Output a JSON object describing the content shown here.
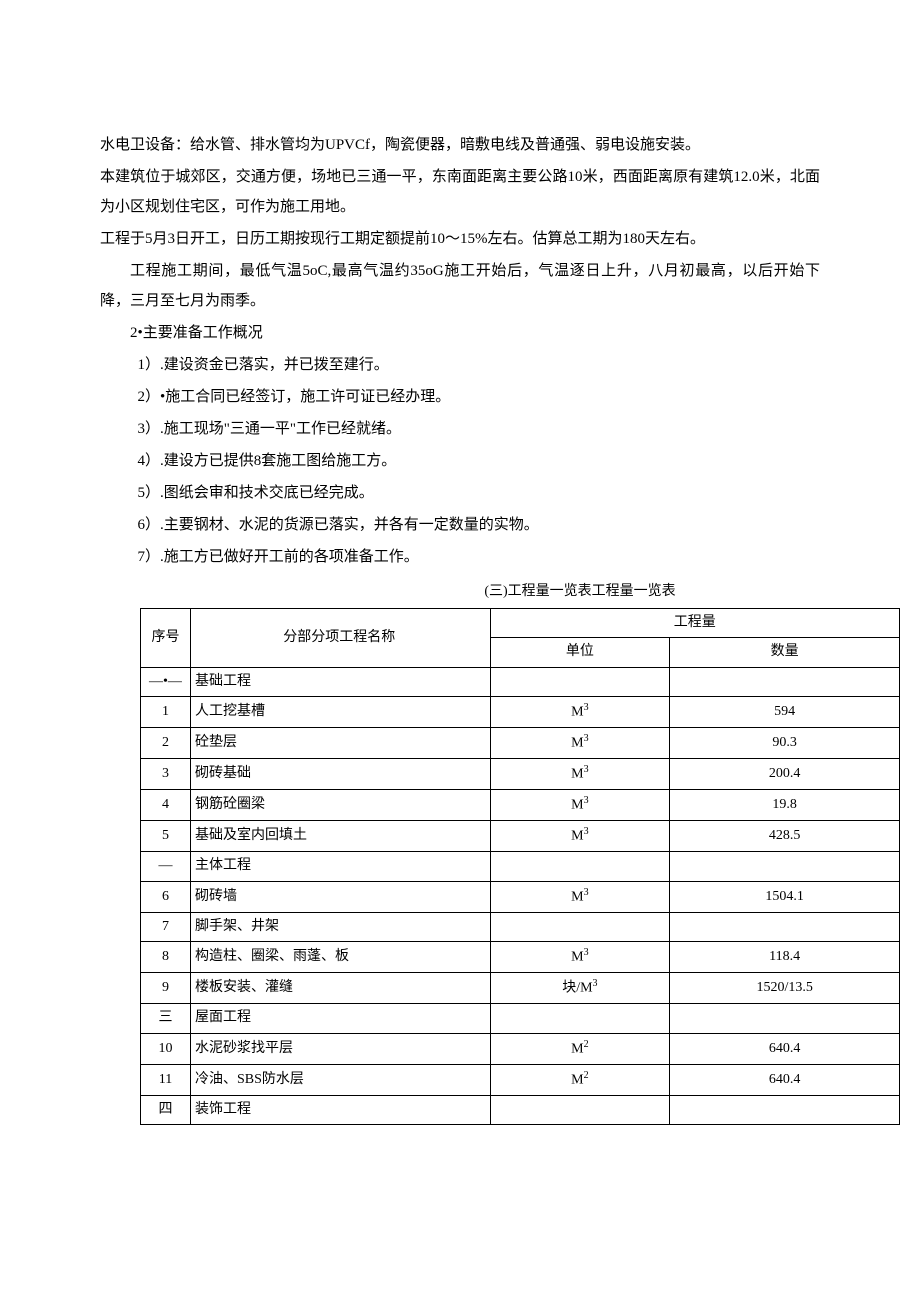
{
  "paragraphs": {
    "p1": "水电卫设备：给水管、排水管均为UPVCf，陶瓷便器，暗敷电线及普通强、弱电设施安装。",
    "p2": "本建筑位于城郊区，交通方便，场地已三通一平，东南面距离主要公路10米，西面距离原有建筑12.0米，北面为小区规划住宅区，可作为施工用地。",
    "p3": "工程于5月3日开工，日历工期按现行工期定额提前10～15%左右。估算总工期为180天左右。",
    "p4": "工程施工期间，最低气温5oC,最高气温约35oG施工开始后，气温逐日上升，八月初最高，以后开始下降，三月至七月为雨季。",
    "p5": "2•主要准备工作概况",
    "p6": "1）.建设资金已落实，并已拨至建行。",
    "p7": "2）•施工合同已经签订，施工许可证已经办理。",
    "p8": "3）.施工现场\"三通一平\"工作已经就绪。",
    "p9": "4）.建设方已提供8套施工图给施工方。",
    "p10": "5）.图纸会审和技术交底已经完成。",
    "p11": "6）.主要钢材、水泥的货源已落实，并各有一定数量的实物。",
    "p12": "7）.施工方已做好开工前的各项准备工作。"
  },
  "table": {
    "caption": "(三)工程量一览表工程量一览表",
    "headers": {
      "num": "序号",
      "name": "分部分项工程名称",
      "qty_group": "工程量",
      "unit": "单位",
      "qty": "数量"
    },
    "unit_m3": "M",
    "unit_m3_sup": "3",
    "unit_m2": "M",
    "unit_m2_sup": "2",
    "unit_block": "块/M",
    "rows": [
      {
        "num": "—•—",
        "name": "基础工程",
        "unit": "",
        "qty": ""
      },
      {
        "num": "1",
        "name": "人工挖基槽",
        "unit": "M3",
        "qty": "594"
      },
      {
        "num": "2",
        "name": "砼垫层",
        "unit": "M3",
        "qty": "90.3"
      },
      {
        "num": "3",
        "name": "砌砖基础",
        "unit": "M3",
        "qty": "200.4"
      },
      {
        "num": "4",
        "name": "钢筋砼圈梁",
        "unit": "M3",
        "qty": "19.8"
      },
      {
        "num": "5",
        "name": "基础及室内回填土",
        "unit": "M3",
        "qty": "428.5"
      },
      {
        "num": "—",
        "name": "主体工程",
        "unit": "",
        "qty": ""
      },
      {
        "num": "6",
        "name": "砌砖墙",
        "unit": "M3",
        "qty": "1504.1"
      },
      {
        "num": "7",
        "name": "脚手架、井架",
        "unit": "",
        "qty": ""
      },
      {
        "num": "8",
        "name": "构造柱、圈梁、雨蓬、板",
        "unit": "M3",
        "qty": "118.4"
      },
      {
        "num": "9",
        "name": "楼板安装、灌缝",
        "unit": "块/M3",
        "qty": "1520/13.5"
      },
      {
        "num": "三",
        "name": "屋面工程",
        "unit": "",
        "qty": ""
      },
      {
        "num": "10",
        "name": "水泥砂浆找平层",
        "unit": "M2",
        "qty": "640.4"
      },
      {
        "num": "11",
        "name": "冷油、SBS防水层",
        "unit": "M2",
        "qty": "640.4"
      },
      {
        "num": "四",
        "name": "装饰工程",
        "unit": "",
        "qty": ""
      }
    ]
  },
  "styles": {
    "text_color": "#000000",
    "background_color": "#ffffff",
    "border_color": "#000000",
    "body_fontsize": 15,
    "table_fontsize": 14
  }
}
